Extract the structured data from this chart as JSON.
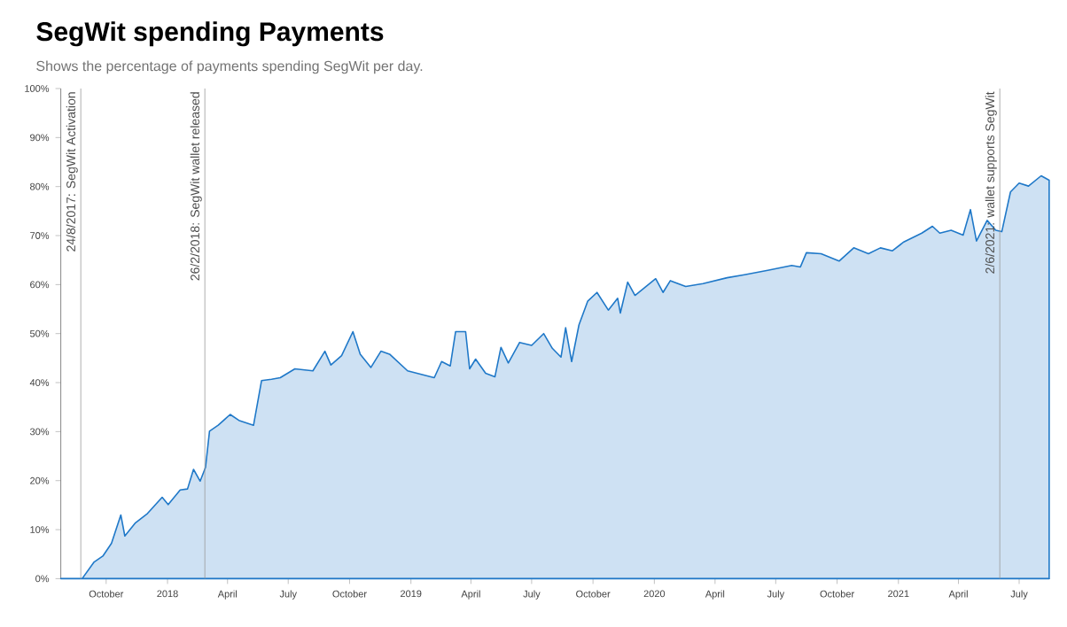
{
  "chart_data": {
    "type": "area",
    "title": "SegWit spending Payments",
    "subtitle": "Shows the percentage of payments spending SegWit per day.",
    "x": [
      "2017-07-25",
      "2017-08-26",
      "2017-09-13",
      "2017-09-26",
      "2017-10-09",
      "2017-10-23",
      "2017-10-29",
      "2017-11-14",
      "2017-12-02",
      "2017-12-24",
      "2018-01-02",
      "2018-01-20",
      "2018-01-31",
      "2018-02-09",
      "2018-02-19",
      "2018-02-27",
      "2018-03-05",
      "2018-03-18",
      "2018-04-05",
      "2018-04-18",
      "2018-05-10",
      "2018-05-22",
      "2018-06-06",
      "2018-06-19",
      "2018-07-11",
      "2018-08-07",
      "2018-08-25",
      "2018-09-03",
      "2018-09-19",
      "2018-10-06",
      "2018-10-17",
      "2018-11-02",
      "2018-11-17",
      "2018-11-30",
      "2018-12-27",
      "2019-02-05",
      "2019-02-16",
      "2019-03-01",
      "2019-03-09",
      "2019-03-24",
      "2019-03-30",
      "2019-04-08",
      "2019-04-23",
      "2019-05-07",
      "2019-05-16",
      "2019-05-27",
      "2019-06-13",
      "2019-07-01",
      "2019-07-19",
      "2019-08-01",
      "2019-08-14",
      "2019-08-21",
      "2019-08-30",
      "2019-09-10",
      "2019-09-23",
      "2019-10-07",
      "2019-10-24",
      "2019-11-07",
      "2019-11-11",
      "2019-11-22",
      "2019-12-03",
      "2020-01-03",
      "2020-01-14",
      "2020-01-25",
      "2020-02-17",
      "2020-03-14",
      "2020-04-19",
      "2020-05-15",
      "2020-06-19",
      "2020-07-25",
      "2020-08-07",
      "2020-08-16",
      "2020-09-07",
      "2020-10-04",
      "2020-10-26",
      "2020-11-17",
      "2020-12-05",
      "2020-12-23",
      "2021-01-09",
      "2021-02-05",
      "2021-02-21",
      "2021-03-04",
      "2021-03-21",
      "2021-04-08",
      "2021-04-19",
      "2021-04-28",
      "2021-05-14",
      "2021-05-27",
      "2021-06-05",
      "2021-06-18",
      "2021-07-01",
      "2021-07-15",
      "2021-08-03",
      "2021-08-15"
    ],
    "series": [
      {
        "color": "#1f78c8",
        "values": [
          0,
          0,
          3.4,
          4.6,
          7.2,
          13.0,
          8.7,
          11.4,
          13.3,
          16.6,
          15.1,
          18.1,
          18.3,
          22.3,
          19.9,
          22.7,
          30.1,
          31.3,
          33.5,
          32.3,
          31.3,
          40.4,
          40.7,
          41.0,
          42.8,
          42.4,
          46.4,
          43.6,
          45.5,
          50.4,
          45.8,
          43.1,
          46.4,
          45.8,
          42.4,
          41.0,
          44.3,
          43.4,
          50.4,
          50.4,
          42.8,
          44.8,
          41.9,
          41.2,
          47.2,
          44.0,
          48.2,
          47.6,
          50.0,
          47.0,
          45.2,
          51.2,
          44.3,
          51.8,
          56.6,
          58.4,
          54.8,
          57.2,
          54.2,
          60.5,
          57.8,
          61.2,
          58.4,
          60.8,
          59.6,
          60.2,
          61.4,
          62.0,
          62.9,
          63.9,
          63.6,
          66.5,
          66.3,
          64.8,
          67.5,
          66.3,
          67.5,
          66.9,
          68.7,
          70.5,
          71.9,
          70.5,
          71.1,
          70.1,
          75.3,
          68.9,
          73.1,
          71.1,
          70.8,
          78.9,
          80.7,
          80.1,
          82.2,
          81.3
        ]
      }
    ],
    "xlim": [
      "2017-07-25",
      "2021-08-16"
    ],
    "xticks": [
      {
        "value": "2017-10-01",
        "label": "October"
      },
      {
        "value": "2018-01-01",
        "label": "2018"
      },
      {
        "value": "2018-04-01",
        "label": "April"
      },
      {
        "value": "2018-07-01",
        "label": "July"
      },
      {
        "value": "2018-10-01",
        "label": "October"
      },
      {
        "value": "2019-01-01",
        "label": "2019"
      },
      {
        "value": "2019-04-01",
        "label": "April"
      },
      {
        "value": "2019-07-01",
        "label": "July"
      },
      {
        "value": "2019-10-01",
        "label": "October"
      },
      {
        "value": "2020-01-01",
        "label": "2020"
      },
      {
        "value": "2020-04-01",
        "label": "April"
      },
      {
        "value": "2020-07-01",
        "label": "July"
      },
      {
        "value": "2020-10-01",
        "label": "October"
      },
      {
        "value": "2021-01-01",
        "label": "2021"
      },
      {
        "value": "2021-04-01",
        "label": "April"
      },
      {
        "value": "2021-07-01",
        "label": "July"
      }
    ],
    "ylim": [
      0,
      100
    ],
    "yticks": [
      {
        "value": 0,
        "label": "0%"
      },
      {
        "value": 10,
        "label": "10%"
      },
      {
        "value": 20,
        "label": "20%"
      },
      {
        "value": 30,
        "label": "30%"
      },
      {
        "value": 40,
        "label": "40%"
      },
      {
        "value": 50,
        "label": "50%"
      },
      {
        "value": 60,
        "label": "60%"
      },
      {
        "value": 70,
        "label": "70%"
      },
      {
        "value": 80,
        "label": "80%"
      },
      {
        "value": 90,
        "label": "90%"
      },
      {
        "value": 100,
        "label": "100%"
      }
    ],
    "ref_lines": [
      {
        "axis": "x",
        "value": "2017-08-24",
        "label": "24/8/2017: SegWit Activation",
        "color": "#999999"
      },
      {
        "axis": "x",
        "value": "2018-02-26",
        "label": "26/2/2018: SegWit wallet released",
        "color": "#999999"
      },
      {
        "axis": "x",
        "value": "2021-06-02",
        "label": "2/6/2021: wallet supports SegWit",
        "color": "#999999"
      }
    ]
  }
}
